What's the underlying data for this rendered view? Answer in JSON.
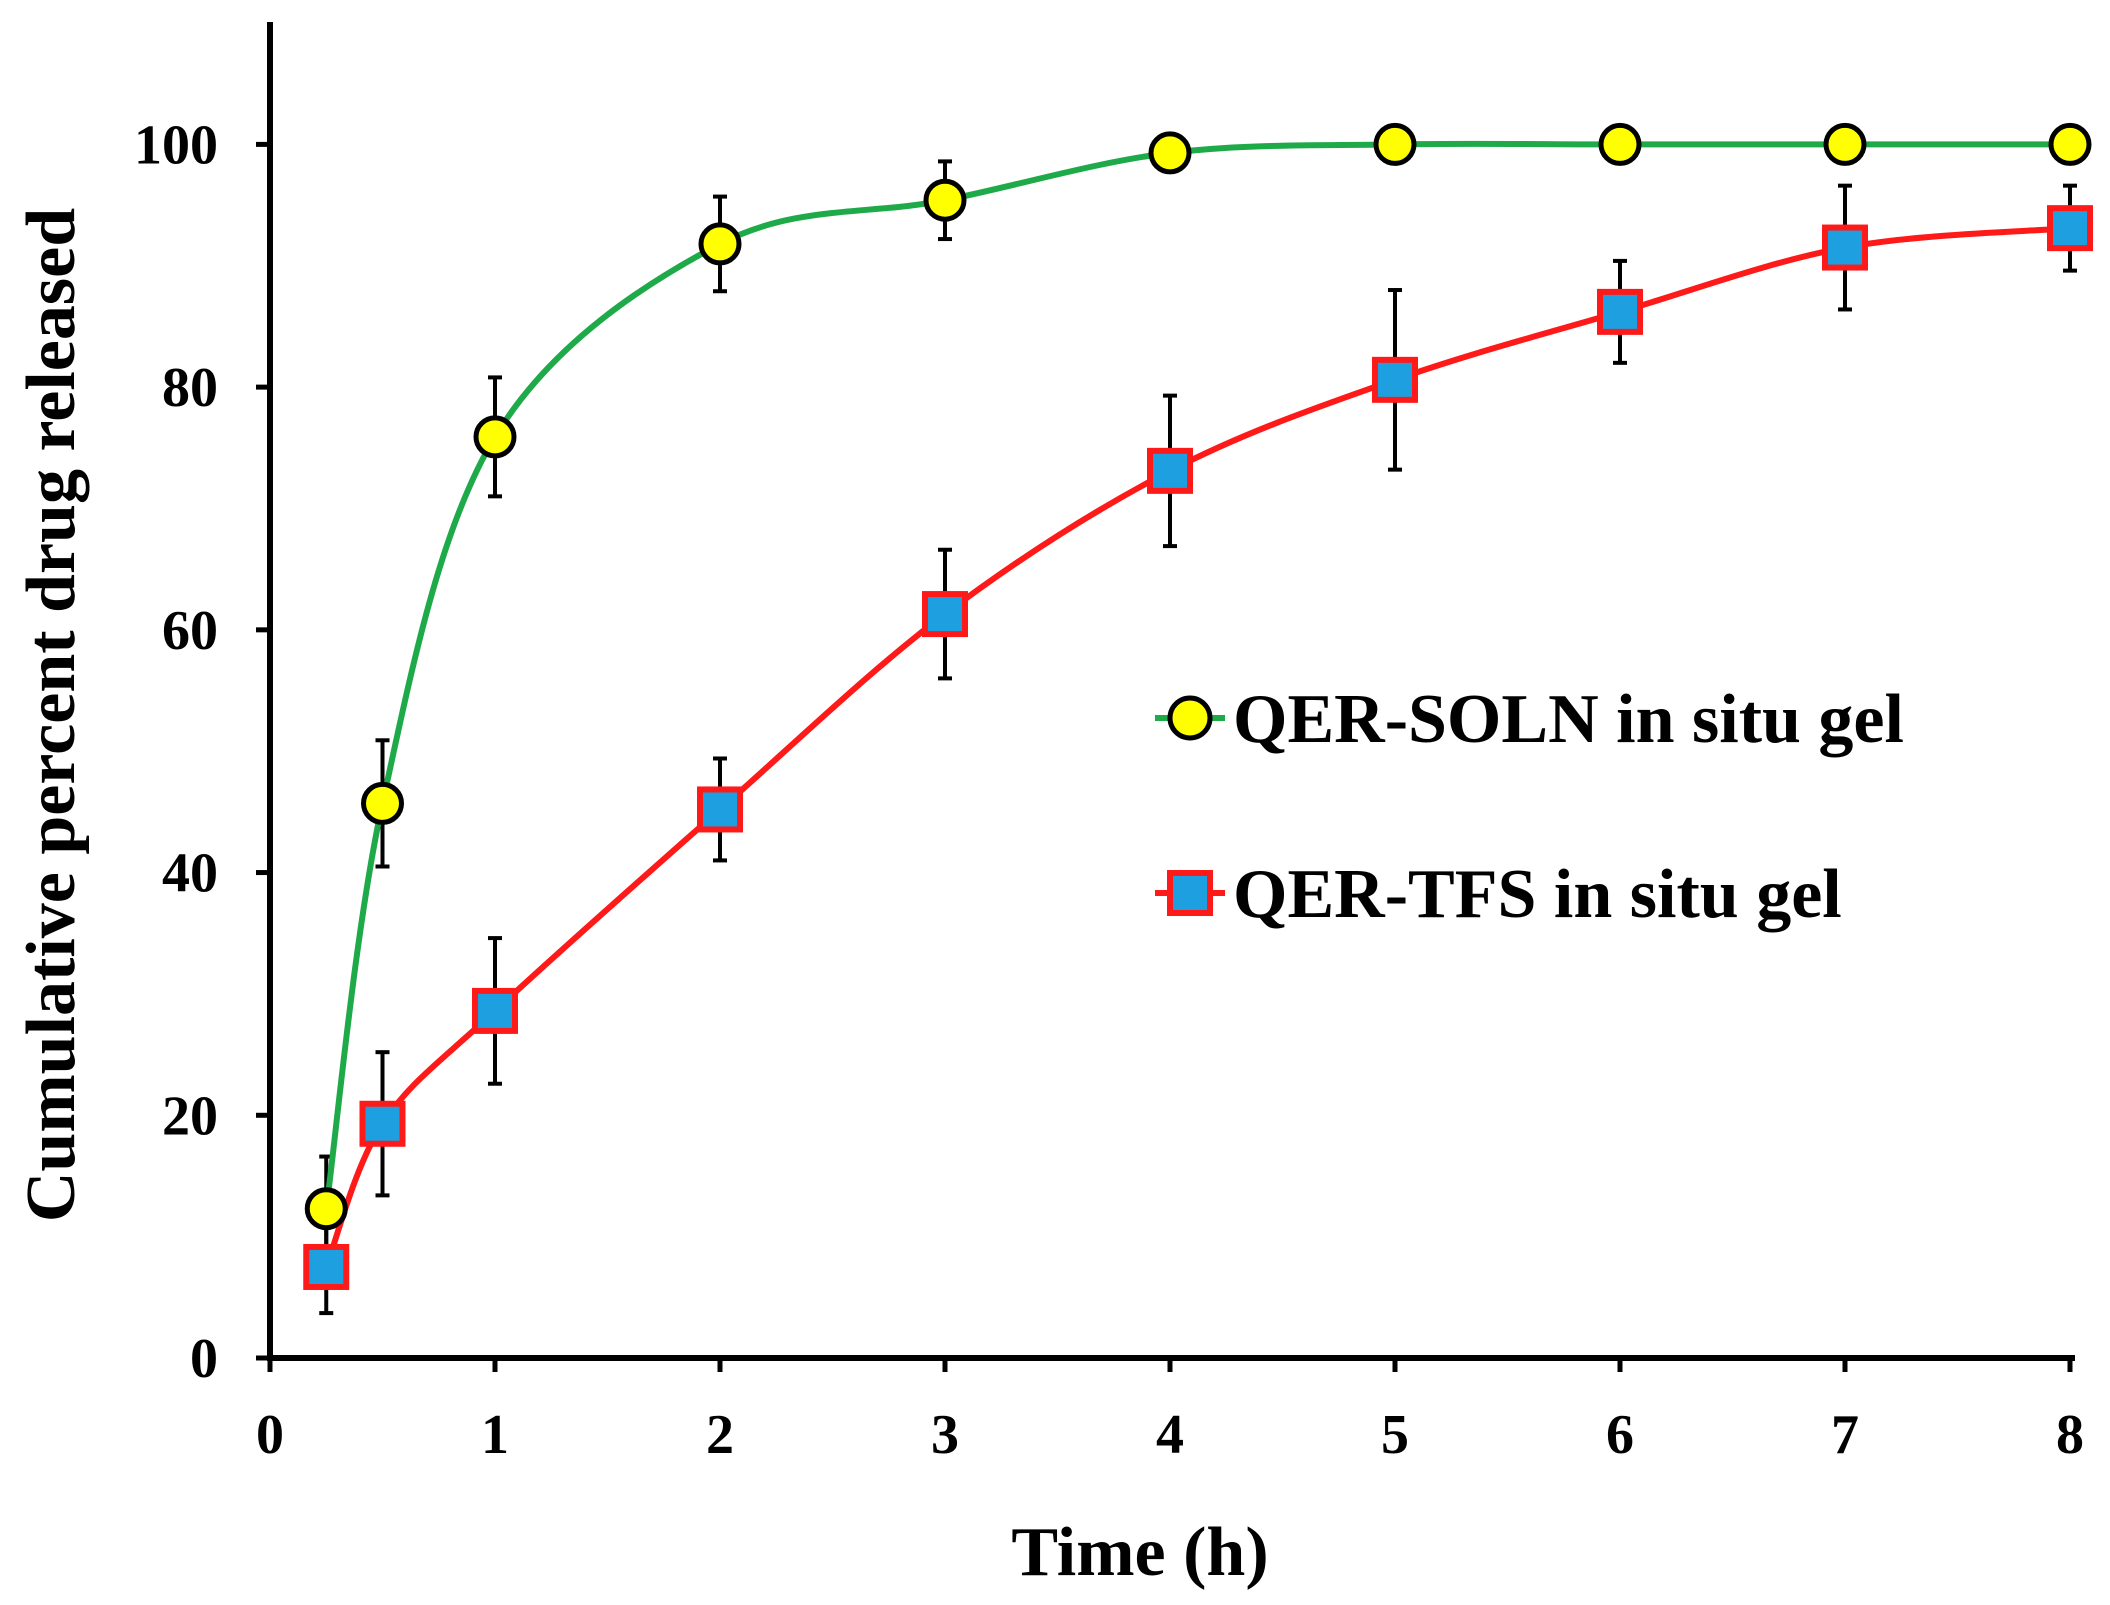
{
  "chart_data": {
    "type": "line",
    "title": "",
    "xlabel": "Time (h)",
    "ylabel": "Cumulative percent drug released",
    "xlim": [
      0,
      8
    ],
    "ylim": [
      0,
      110
    ],
    "xticks": [
      "0",
      "1",
      "2",
      "3",
      "4",
      "5",
      "6",
      "7",
      "8"
    ],
    "yticks": [
      "0",
      "20",
      "40",
      "60",
      "80",
      "100"
    ],
    "grid": false,
    "legend_position": "right-middle",
    "series": [
      {
        "name": "QER-SOLN in situ gel",
        "line_color": "#1faa4a",
        "marker": "circle",
        "marker_fill": "#ffff00",
        "marker_edge": "#000000",
        "x": [
          0.25,
          0.5,
          1,
          2,
          3,
          4,
          5,
          6,
          7,
          8
        ],
        "y": [
          12.3,
          45.7,
          75.9,
          91.8,
          95.4,
          99.3,
          100,
          100,
          100,
          100
        ],
        "error": [
          4.3,
          5.2,
          4.9,
          3.9,
          3.2,
          0,
          0,
          0,
          0,
          0
        ]
      },
      {
        "name": "QER-TFS in situ gel",
        "line_color": "#ff1a1a",
        "marker": "square",
        "marker_fill": "#1e9fe0",
        "marker_edge": "#ff1a1a",
        "x": [
          0.25,
          0.5,
          1,
          2,
          3,
          4,
          5,
          6,
          7,
          8
        ],
        "y": [
          7.5,
          19.3,
          28.6,
          45.2,
          61.3,
          73.1,
          80.6,
          86.2,
          91.5,
          93.1
        ],
        "error": [
          3.8,
          5.9,
          6.0,
          4.2,
          5.3,
          6.2,
          7.4,
          4.2,
          5.1,
          3.5
        ]
      }
    ]
  }
}
